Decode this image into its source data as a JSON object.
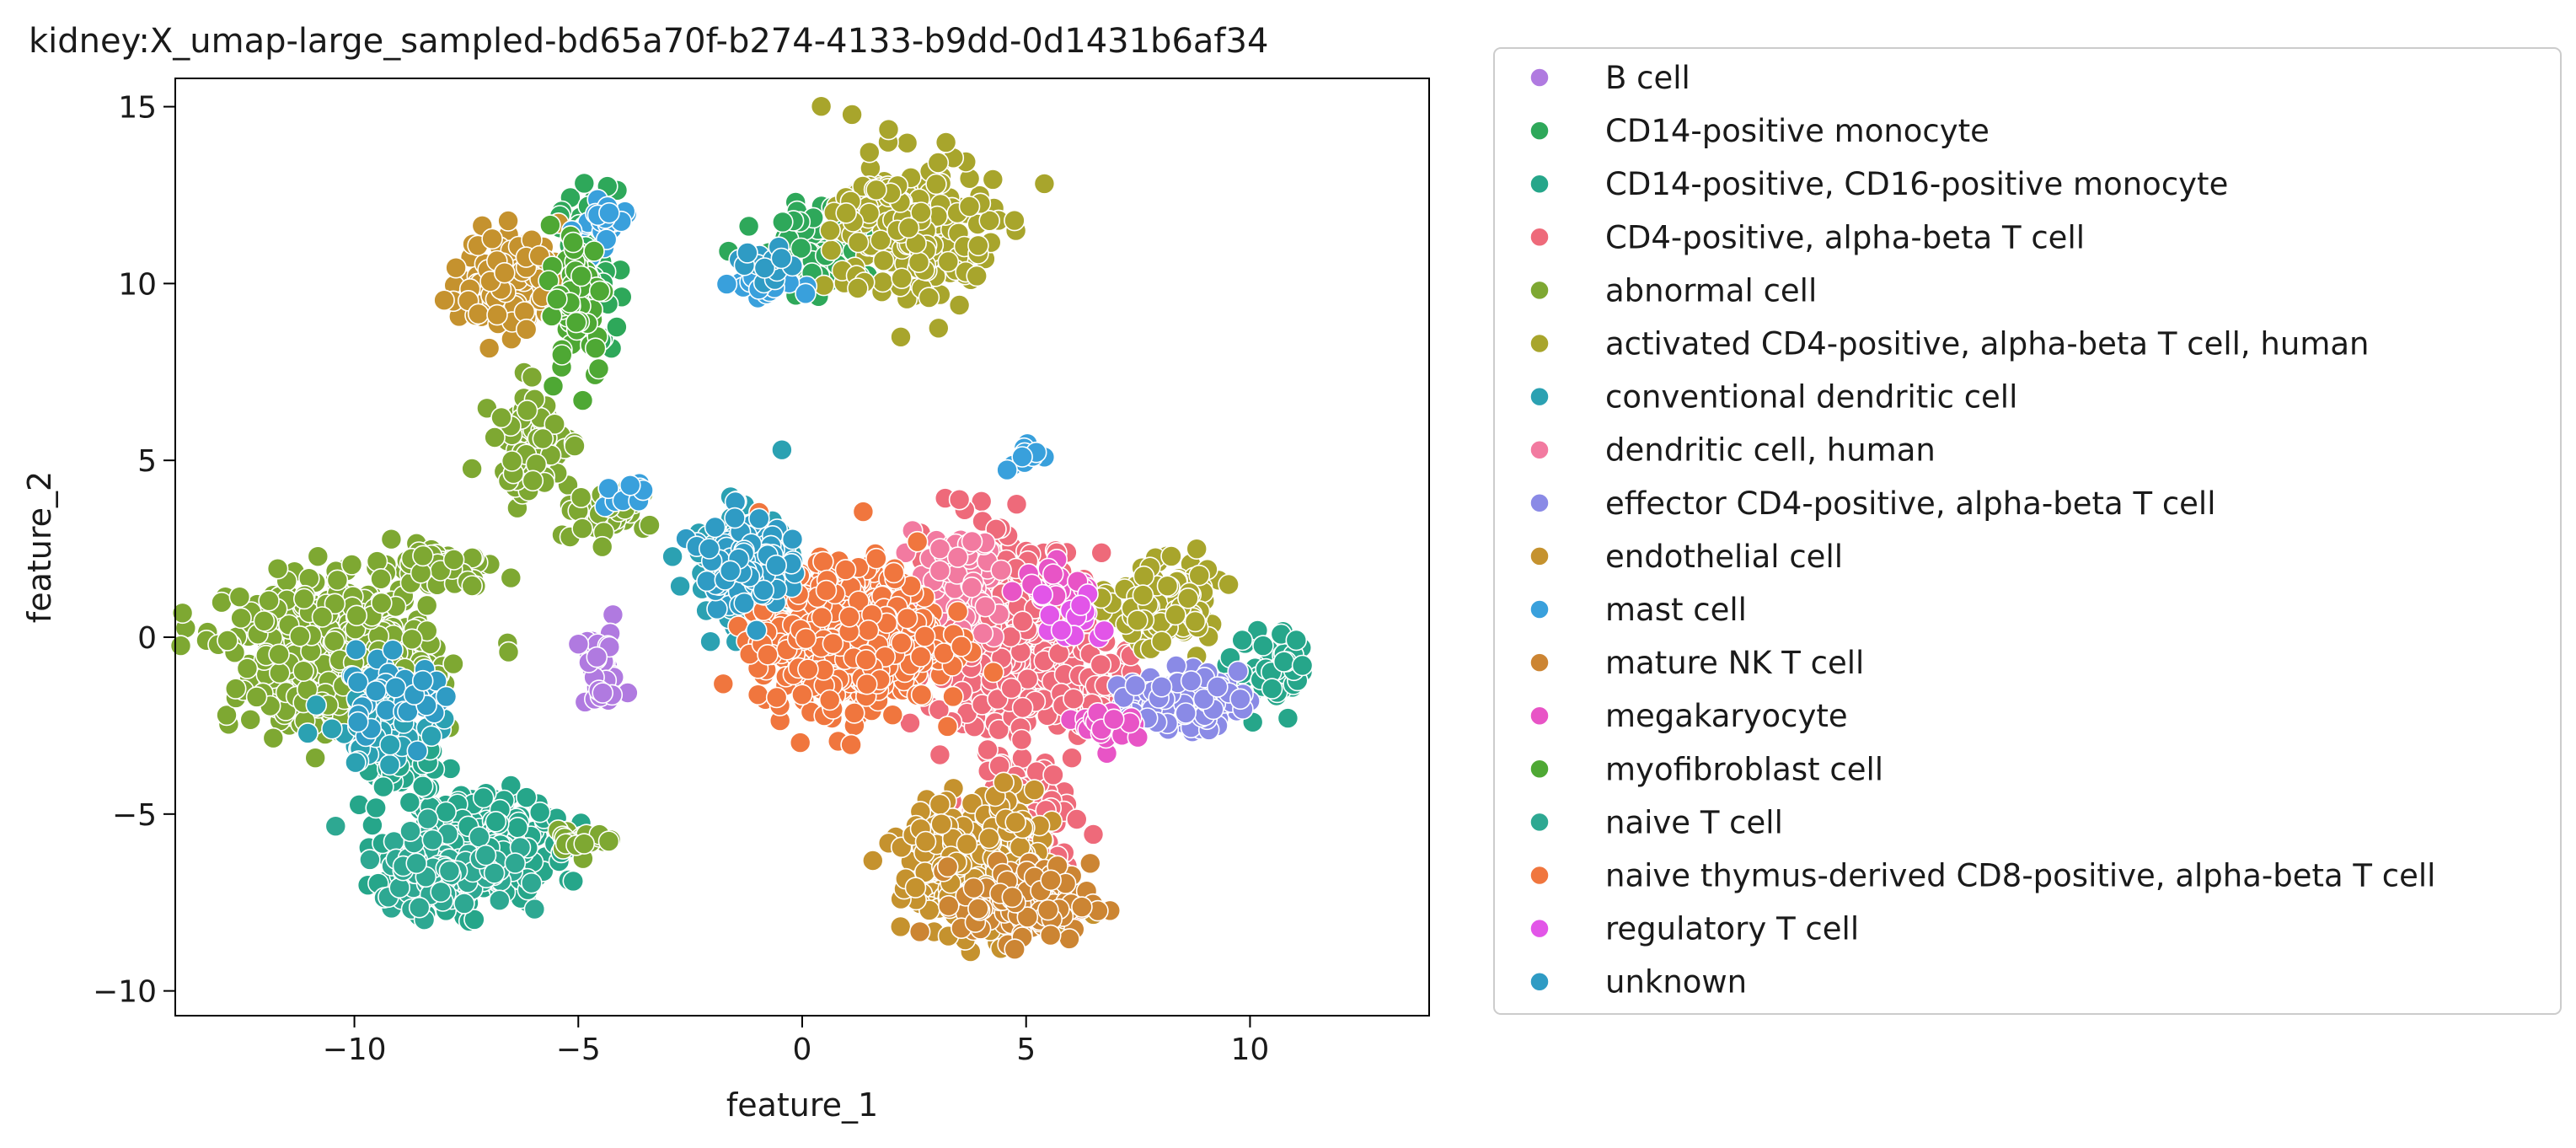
{
  "chart_data": {
    "type": "scatter",
    "title": "kidney:X_umap-large_sampled-bd65a70f-b274-4133-b9dd-0d1431b6af34",
    "xlabel": "feature_1",
    "ylabel": "feature_2",
    "xlim": [
      -14,
      14
    ],
    "ylim": [
      -10.7,
      15.8
    ],
    "xticks": [
      -10,
      -5,
      0,
      5,
      10
    ],
    "yticks": [
      -10,
      -5,
      0,
      5,
      10,
      15
    ],
    "xtick_labels": [
      "−10",
      "−5",
      "0",
      "5",
      "10"
    ],
    "ytick_labels": [
      "−10",
      "−5",
      "0",
      "5",
      "10",
      "15"
    ],
    "grid": false,
    "legend_position": "outside right",
    "series": [
      {
        "name": "B cell",
        "color": "#b07ae0",
        "clusters": [
          [
            -4.5,
            -1.0,
            0.5,
            1.0,
            40
          ]
        ]
      },
      {
        "name": "CD14-positive monocyte",
        "color": "#2ea85a",
        "clusters": [
          [
            -4.8,
            10.5,
            0.6,
            2.0,
            60
          ],
          [
            0.5,
            11.0,
            1.2,
            1.2,
            90
          ]
        ]
      },
      {
        "name": "CD14-positive, CD16-positive monocyte",
        "color": "#26a68a",
        "clusters": [
          [
            -7.5,
            -6.0,
            1.6,
            1.4,
            320
          ],
          [
            -9.0,
            -3.5,
            0.8,
            0.8,
            60
          ],
          [
            10.5,
            -1.0,
            0.8,
            1.0,
            50
          ]
        ]
      },
      {
        "name": "CD4-positive, alpha-beta T cell",
        "color": "#ee6a7a",
        "clusters": [
          [
            4.5,
            0.0,
            1.6,
            2.5,
            420
          ],
          [
            5.0,
            -5.5,
            1.0,
            1.8,
            140
          ],
          [
            6.8,
            -1.5,
            0.6,
            1.0,
            40
          ]
        ]
      },
      {
        "name": "abnormal cell",
        "color": "#7ea832",
        "clusters": [
          [
            -10.5,
            -0.5,
            2.0,
            1.8,
            520
          ],
          [
            -6.0,
            5.5,
            0.8,
            1.4,
            70
          ],
          [
            -4.5,
            3.5,
            0.9,
            0.6,
            50
          ],
          [
            -8.0,
            2.0,
            1.0,
            0.5,
            70
          ],
          [
            -5.0,
            -5.7,
            0.5,
            0.5,
            25
          ]
        ]
      },
      {
        "name": "activated CD4-positive, alpha-beta T cell, human",
        "color": "#a8a52c",
        "clusters": [
          [
            2.5,
            11.5,
            1.6,
            2.0,
            220
          ],
          [
            8.0,
            1.0,
            1.0,
            1.0,
            150
          ]
        ]
      },
      {
        "name": "conventional dendritic cell",
        "color": "#2ba1b2",
        "clusters": [
          [
            -1.4,
            2.0,
            0.9,
            1.4,
            160
          ],
          [
            -9.5,
            -2.5,
            1.0,
            1.0,
            60
          ]
        ]
      },
      {
        "name": "dendritic cell, human",
        "color": "#f27aa0",
        "clusters": [
          [
            3.5,
            1.5,
            0.9,
            1.2,
            80
          ]
        ]
      },
      {
        "name": "effector CD4-positive, alpha-beta T cell",
        "color": "#8a8ae6",
        "clusters": [
          [
            8.5,
            -1.8,
            1.1,
            0.7,
            120
          ]
        ]
      },
      {
        "name": "endothelial cell",
        "color": "#c5922e",
        "clusters": [
          [
            -6.5,
            10.0,
            1.0,
            1.3,
            150
          ],
          [
            4.0,
            -6.5,
            1.5,
            1.8,
            320
          ]
        ]
      },
      {
        "name": "mast cell",
        "color": "#39a0dc",
        "clusters": [
          [
            -4.5,
            11.5,
            0.5,
            0.8,
            25
          ],
          [
            -1.0,
            10.0,
            0.7,
            0.5,
            20
          ],
          [
            -4.0,
            4.0,
            0.5,
            0.3,
            12
          ],
          [
            5.0,
            5.0,
            0.4,
            0.5,
            12
          ]
        ]
      },
      {
        "name": "mature NK T cell",
        "color": "#cc8533",
        "clusters": [
          [
            5.0,
            -7.5,
            1.3,
            1.0,
            120
          ]
        ]
      },
      {
        "name": "megakaryocyte",
        "color": "#e854c6",
        "clusters": [
          [
            5.5,
            1.5,
            0.8,
            0.6,
            20
          ],
          [
            7.0,
            -2.5,
            0.7,
            0.6,
            20
          ]
        ]
      },
      {
        "name": "myofibroblast cell",
        "color": "#4ea834",
        "clusters": [
          [
            -5.0,
            9.5,
            0.6,
            2.0,
            70
          ]
        ]
      },
      {
        "name": "naive T cell",
        "color": "#2ea892",
        "clusters": [
          [
            -8.0,
            -6.5,
            1.3,
            1.0,
            120
          ]
        ]
      },
      {
        "name": "naive thymus-derived CD8-positive, alpha-beta T cell",
        "color": "#f0763e",
        "clusters": [
          [
            1.0,
            0.0,
            1.8,
            1.8,
            620
          ]
        ]
      },
      {
        "name": "regulatory T cell",
        "color": "#e255e8",
        "clusters": [
          [
            6.0,
            0.5,
            0.8,
            1.0,
            15
          ]
        ]
      },
      {
        "name": "unknown",
        "color": "#2f9bc4",
        "clusters": [
          [
            -1.3,
            2.2,
            0.8,
            1.2,
            120
          ],
          [
            -9.0,
            -1.5,
            1.2,
            1.0,
            40
          ],
          [
            -0.8,
            10.5,
            0.6,
            0.5,
            15
          ]
        ]
      }
    ]
  }
}
